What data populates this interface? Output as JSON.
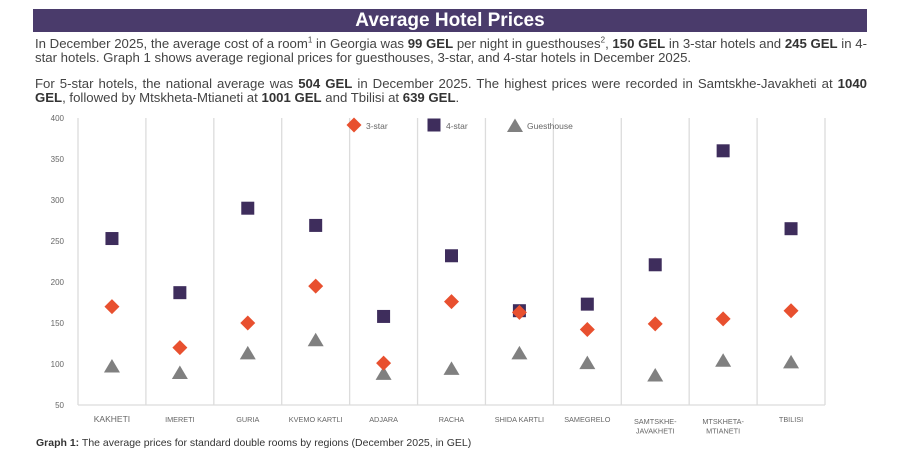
{
  "title": "Average Hotel Prices",
  "paragraph1": {
    "t1": "In December 2025, the average cost of a room",
    "sup1": "1",
    "t2": " in Georgia was ",
    "b1": "99 GEL",
    "t3": " per night in guesthouses",
    "sup2": "2",
    "t4": ", ",
    "b2": "150 GEL",
    "t5": " in 3-star hotels and ",
    "b3": "245 GEL",
    "t6": " in 4-star hotels. Graph 1 shows average regional prices for guesthouses, 3-star, and 4-star hotels in December 2025."
  },
  "paragraph2": {
    "t1": "For 5-star hotels, the national average was ",
    "b1": "504 GEL",
    "t2": " in December 2025. The highest prices were recorded in Samtskhe-Javakheti at ",
    "b2": "1040 GEL",
    "t3": ", followed by Mtskheta-Mtianeti at ",
    "b3": "1001 GEL",
    "t4": " and Tbilisi at ",
    "b4": "639 GEL",
    "t5": "."
  },
  "caption": {
    "label": "Graph 1:",
    "text": " The average prices for standard double rooms by regions (December 2025, in GEL)"
  },
  "chart_data": {
    "type": "scatter",
    "title": "",
    "xlabel": "",
    "ylabel": "",
    "ylim": [
      50,
      400
    ],
    "yticks": [
      50,
      100,
      150,
      200,
      250,
      300,
      350,
      400
    ],
    "legend_position": "top-right",
    "categories": [
      "KAKHETI",
      "IMERETI",
      "GURIA",
      "KVEMO KARTLI",
      "ADJARA",
      "RACHA",
      "SHIDA KARTLI",
      "SAMEGRELO",
      "SAMTSKHE-\nJAVAKHETI",
      "MTSKHETA-\nMTIANETI",
      "TBILISI"
    ],
    "series": [
      {
        "name": "3-star",
        "marker": "diamond",
        "color": "#e8502f",
        "values": [
          170,
          120,
          150,
          195,
          101,
          176,
          163,
          142,
          149,
          155,
          165
        ]
      },
      {
        "name": "4-star",
        "marker": "square",
        "color": "#3e2d5c",
        "values": [
          253,
          187,
          290,
          269,
          158,
          232,
          165,
          173,
          221,
          360,
          265
        ]
      },
      {
        "name": "Guesthouse",
        "marker": "triangle",
        "color": "#808080",
        "values": [
          97,
          89,
          113,
          129,
          88,
          94,
          113,
          101,
          86,
          104,
          102
        ]
      }
    ]
  }
}
